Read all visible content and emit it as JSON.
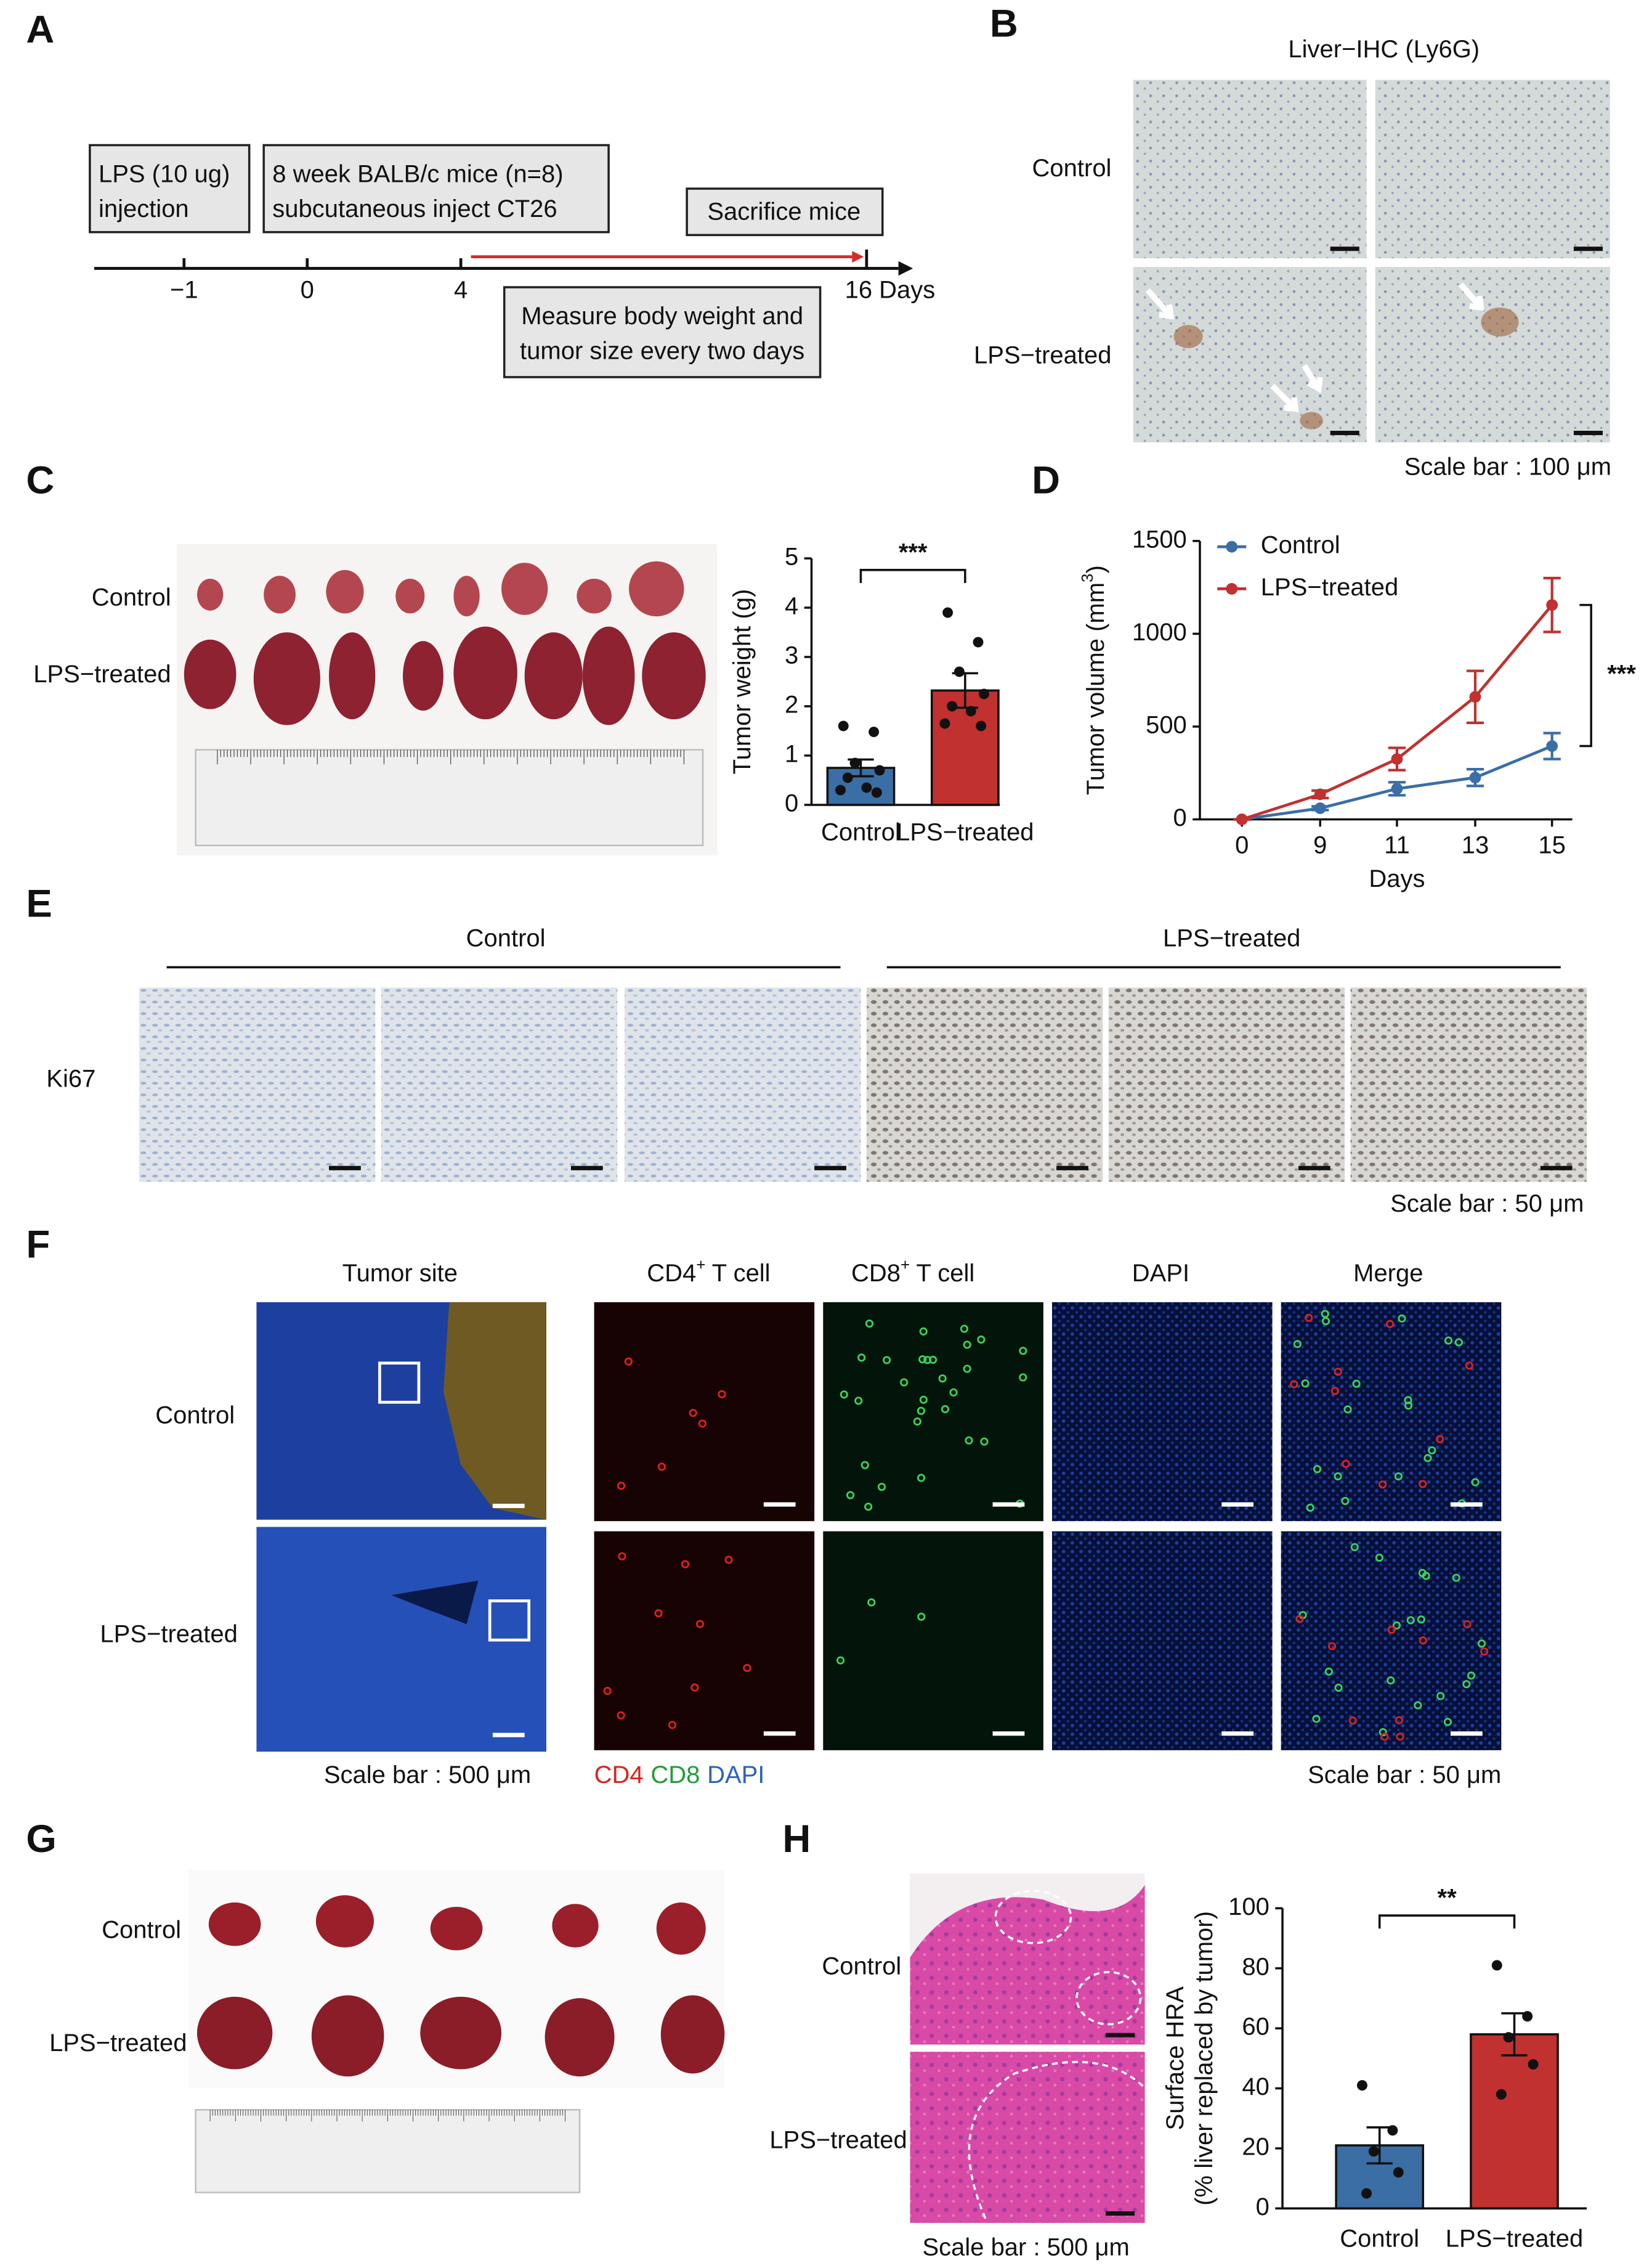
{
  "figure": {
    "A": {
      "letter": "A",
      "box1": [
        "LPS (10 ug)",
        "injection"
      ],
      "box2": [
        "8 week BALB/c mice (n=8)",
        "subcutaneous inject CT26"
      ],
      "box3": "Sacrifice mice",
      "timeline": [
        "−1",
        "0",
        "4",
        "16 Days"
      ],
      "box4": [
        "Measure body weight and",
        "tumor size every two days"
      ]
    },
    "B": {
      "letter": "B",
      "title": "Liver−IHC (Ly6G)",
      "rows": [
        "Control",
        "LPS−treated"
      ],
      "scale": "Scale bar : 100 μm"
    },
    "C": {
      "letter": "C",
      "rows": [
        "Control",
        "LPS−treated"
      ]
    },
    "D": {
      "letter": "D"
    },
    "E": {
      "letter": "E",
      "groups": [
        "Control",
        "LPS−treated"
      ],
      "row": "Ki67",
      "scale": "Scale bar : 50 μm"
    },
    "F": {
      "letter": "F",
      "tumor_title": "Tumor site",
      "columns": [
        [
          "CD4",
          "+",
          " T cell"
        ],
        [
          "CD8",
          "+",
          " T cell"
        ],
        [
          "DAPI"
        ],
        [
          "Merge"
        ]
      ],
      "rows": [
        "Control",
        "LPS−treated"
      ],
      "scale_left": "Scale bar : 500 μm",
      "channels": [
        "CD4",
        "CD8",
        "DAPI"
      ],
      "channel_colors": [
        "#e0201b",
        "#1f9e3a",
        "#2a64b8"
      ],
      "scale_right": "Scale bar : 50 μm"
    },
    "G": {
      "letter": "G",
      "rows": [
        "Control",
        "LPS−treated"
      ]
    },
    "H": {
      "letter": "H",
      "rows": [
        "Control",
        "LPS−treated"
      ],
      "scale": "Scale bar : 500 μm"
    }
  },
  "chart_data": [
    {
      "type": "bar",
      "ylabel": [
        "Tumor weight (g)"
      ],
      "categories": [
        "Control",
        "LPS−treated"
      ],
      "values": [
        0.75,
        2.32
      ],
      "errors": [
        0.17,
        0.35
      ],
      "colors": [
        "#3a6ea5",
        "#c0312f"
      ],
      "points": [
        [
          1.6,
          1.48,
          0.85,
          0.7,
          0.55,
          0.35,
          0.3,
          0.25
        ],
        [
          3.9,
          3.3,
          2.7,
          2.25,
          2.0,
          1.9,
          1.65,
          1.6
        ]
      ],
      "significance": "***",
      "ylim": [
        0,
        5
      ],
      "yticks": [
        0,
        1,
        2,
        3,
        4,
        5
      ]
    },
    {
      "type": "line",
      "ylabel": [
        "Tumor volume (mm",
        "3",
        ")"
      ],
      "xlabel": "Days",
      "categories": [
        "0",
        "9",
        "11",
        "13",
        "15"
      ],
      "series": [
        {
          "name": "Control",
          "color": "#3a6ea5",
          "values": [
            0,
            60,
            165,
            225,
            395
          ],
          "errors": [
            0,
            10,
            35,
            45,
            70
          ]
        },
        {
          "name": "LPS−treated",
          "color": "#c0312f",
          "values": [
            0,
            135,
            325,
            660,
            1155
          ],
          "errors": [
            0,
            20,
            60,
            140,
            145
          ]
        }
      ],
      "significance": "***",
      "ylim": [
        0,
        1500
      ],
      "yticks": [
        0,
        500,
        1000,
        1500
      ]
    },
    {
      "type": "bar",
      "ylabel": [
        "Surface HRA",
        "(% liver replaced by tumor)"
      ],
      "categories": [
        "Control",
        "LPS−treated"
      ],
      "values": [
        21,
        58
      ],
      "errors": [
        6,
        7
      ],
      "colors": [
        "#3a6ea5",
        "#c0312f"
      ],
      "points": [
        [
          41,
          26,
          19,
          12,
          5
        ],
        [
          81,
          64,
          57,
          48,
          38
        ]
      ],
      "significance": "**",
      "ylim": [
        0,
        100
      ],
      "yticks": [
        0,
        20,
        40,
        60,
        80,
        100
      ]
    }
  ]
}
